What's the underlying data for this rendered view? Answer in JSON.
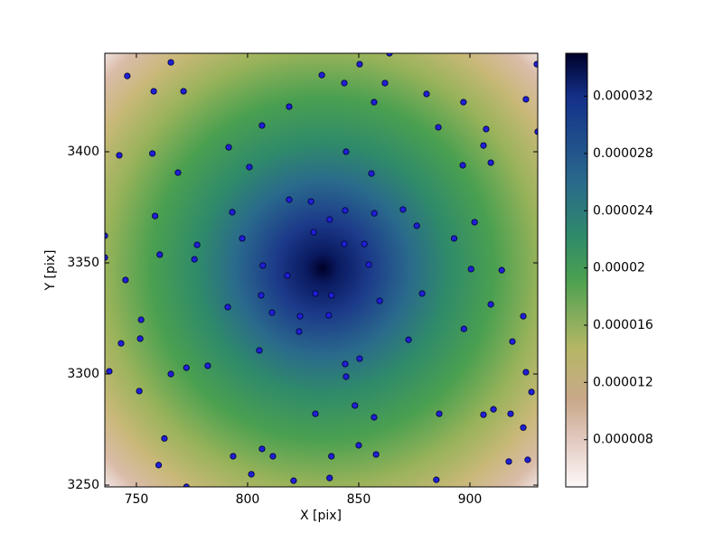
{
  "chart_data": {
    "type": "scatter",
    "xlabel": "X [pix]",
    "ylabel": "Y [pix]",
    "xlim": [
      735.8,
      930.5
    ],
    "ylim": [
      3249.2,
      3444.3
    ],
    "xticks": [
      750,
      800,
      850,
      900
    ],
    "yticks": [
      3250,
      3300,
      3350,
      3400
    ],
    "grid": false,
    "color": "#1f1fd6",
    "x": [
      765.5,
      745.9,
      850.4,
      863.8,
      833.4,
      843.5,
      861.8,
      757.8,
      771.2,
      880.5,
      930.1,
      925.2,
      856.9,
      897.1,
      818.7,
      806.5,
      885.8,
      907.3,
      930.5,
      791.5,
      906.1,
      844.3,
      757.2,
      742.3,
      909.4,
      896.8,
      800.8,
      768.7,
      855.7,
      818.7,
      828.5,
      843.9,
      869.9,
      793.1,
      857.0,
      758.4,
      836.9,
      902.1,
      876.1,
      829.7,
      735.8,
      797.6,
      892.9,
      777.3,
      843.5,
      852.5,
      760.5,
      735.8,
      776.1,
      854.5,
      806.9,
      900.5,
      914.3,
      817.9,
      745.1,
      830.5,
      837.7,
      806.1,
      878.5,
      859.4,
      909.4,
      791.1,
      811.0,
      836.5,
      823.6,
      924.0,
      752.1,
      823.2,
      897.3,
      751.7,
      872.4,
      919.1,
      743.1,
      805.3,
      850.4,
      843.9,
      782.1,
      772.5,
      737.8,
      765.5,
      925.2,
      844.3,
      927.7,
      751.3,
      848.3,
      910.6,
      830.5,
      856.9,
      886.2,
      906.1,
      918.3,
      924.0,
      762.6,
      850.0,
      806.5,
      793.5,
      811.4,
      837.7,
      857.8,
      760.0,
      917.5,
      926.0,
      801.7,
      820.7,
      836.9,
      884.9,
      772.5
    ],
    "values": [
      3440.2,
      3434.1,
      3439.4,
      3444.3,
      3434.5,
      3430.9,
      3430.9,
      3427.2,
      3427.2,
      3426.0,
      3439.4,
      3423.6,
      3422.3,
      3422.3,
      3420.3,
      3411.8,
      3411.0,
      3410.2,
      3409.0,
      3402.0,
      3402.8,
      3400.0,
      3399.2,
      3398.4,
      3395.1,
      3393.9,
      3393.1,
      3390.6,
      3390.2,
      3378.4,
      3377.6,
      3373.6,
      3374.0,
      3372.8,
      3372.3,
      3371.1,
      3369.5,
      3368.3,
      3366.7,
      3363.8,
      3362.2,
      3361.0,
      3361.0,
      3358.1,
      3358.5,
      3358.5,
      3353.7,
      3352.4,
      3351.6,
      3349.2,
      3348.8,
      3347.2,
      3346.7,
      3344.3,
      3342.3,
      3336.2,
      3335.4,
      3335.4,
      3336.2,
      3332.9,
      3331.3,
      3330.1,
      3327.6,
      3326.4,
      3326.0,
      3326.0,
      3324.4,
      3319.1,
      3320.3,
      3315.9,
      3315.4,
      3314.6,
      3313.8,
      3310.6,
      3306.9,
      3304.5,
      3303.7,
      3302.8,
      3301.2,
      3300.0,
      3300.8,
      3298.8,
      3291.9,
      3292.3,
      3285.8,
      3284.1,
      3282.1,
      3280.5,
      3282.1,
      3281.7,
      3282.1,
      3275.9,
      3271.0,
      3267.9,
      3266.3,
      3263.0,
      3263.0,
      3263.0,
      3263.8,
      3259.0,
      3260.6,
      3261.4,
      3254.9,
      3252.0,
      3253.2,
      3252.4,
      3249.2
    ],
    "colorbar": {
      "lim": [
        4.7e-06,
        3.5e-05
      ],
      "ticks": [
        8e-06,
        1.2e-05,
        1.6e-05,
        2e-05,
        2.4e-05,
        2.8e-05,
        3.2e-05
      ]
    }
  }
}
